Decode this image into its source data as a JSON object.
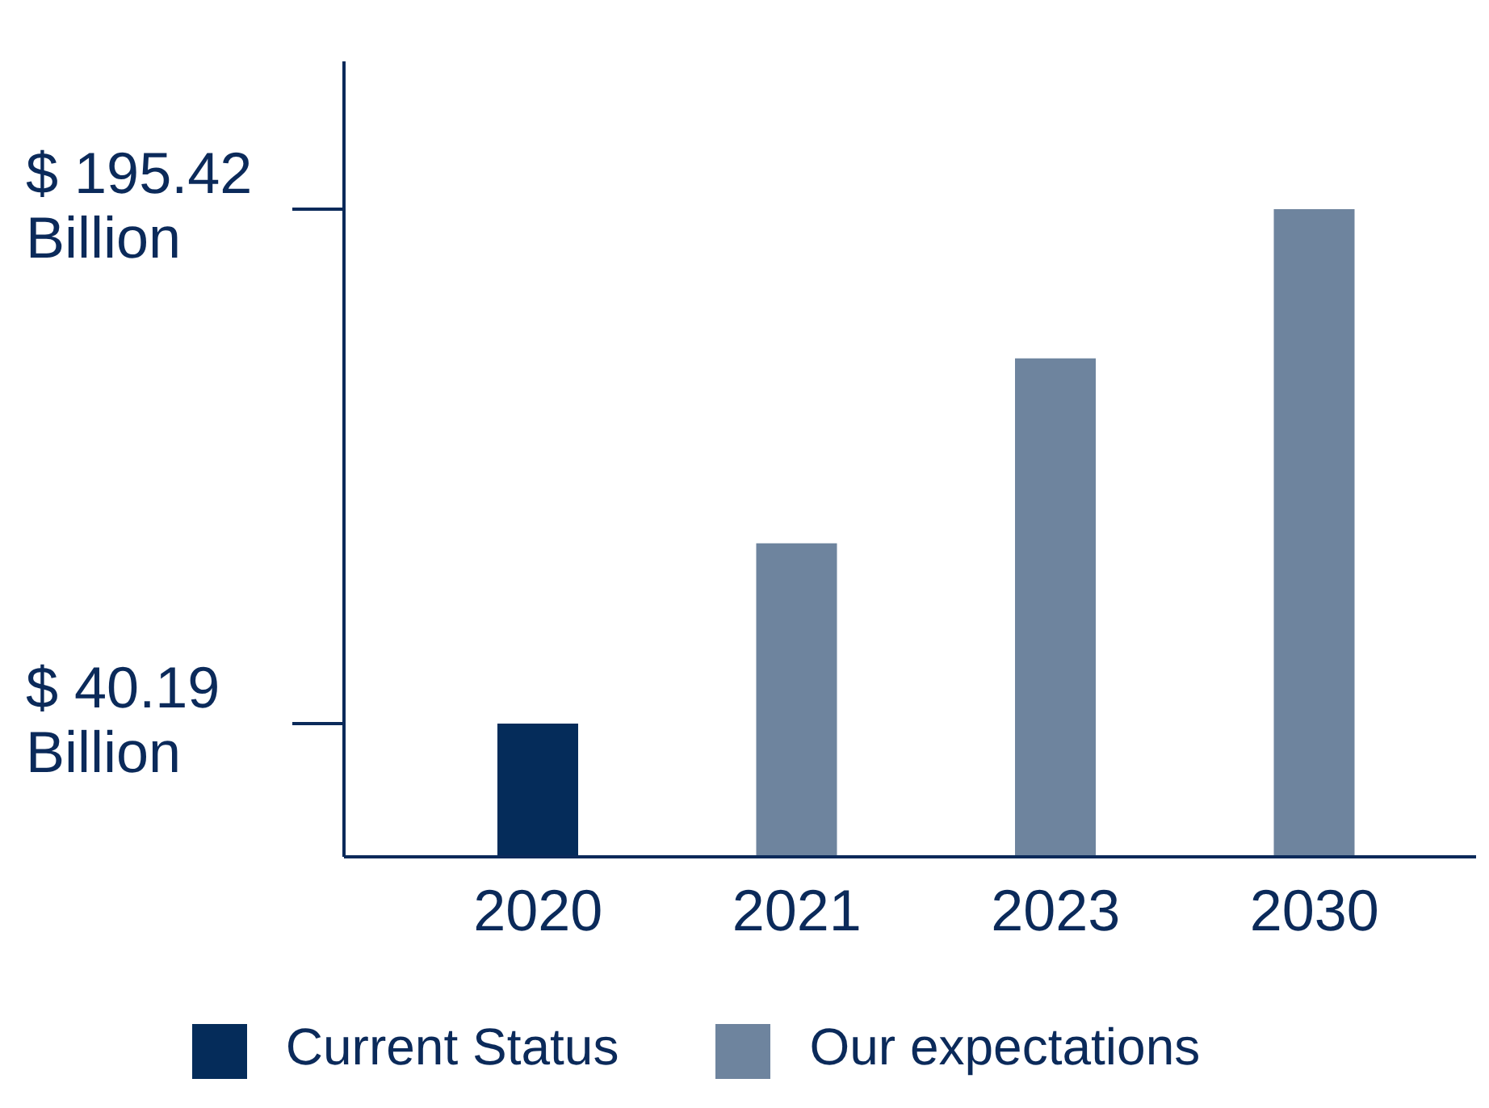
{
  "chart_data": {
    "type": "bar",
    "categories": [
      "2020",
      "2021",
      "2023",
      "2030"
    ],
    "series": [
      {
        "name": "Current Status",
        "color": "#052c5a",
        "values": [
          40.19,
          null,
          null,
          null
        ]
      },
      {
        "name": "Our expectations",
        "color": "#6e849e",
        "values": [
          null,
          94.6,
          150.4,
          195.42
        ]
      }
    ],
    "stacked": true,
    "ylim": [
      0,
      240
    ],
    "yticks": [
      {
        "value": 40.19,
        "label": "$ 40.19 Billion"
      },
      {
        "value": 195.42,
        "label": "$ 195.42 Billion"
      }
    ],
    "grid": false,
    "legend": "bottom"
  }
}
